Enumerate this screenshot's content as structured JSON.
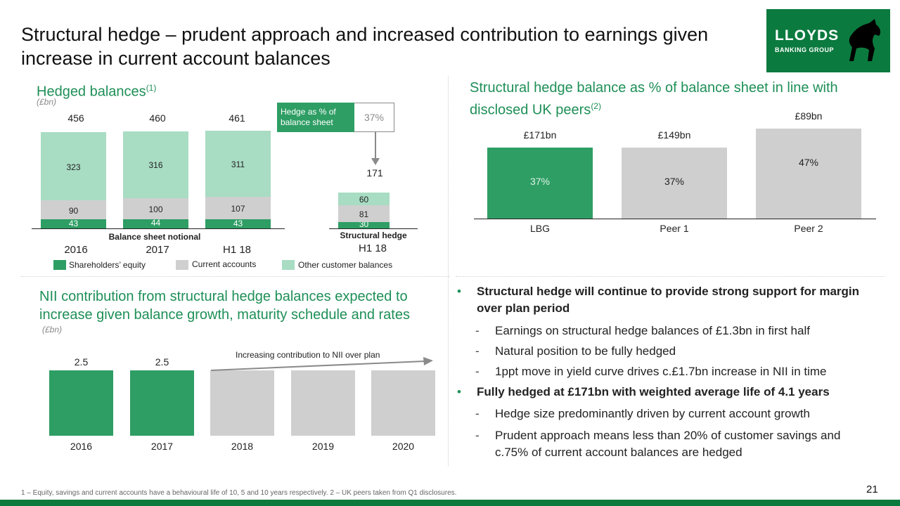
{
  "slide": {
    "title": "Structural hedge – prudent approach and increased contribution to earnings given increase in current account balances",
    "logo_line1": "LLOYDS",
    "logo_line2": "BANKING GROUP",
    "page_number": "21",
    "footnote": "1 – Equity, savings and current accounts have a behavioural life of 10, 5 and 10 years respectively.  2 – UK peers taken from Q1 disclosures."
  },
  "colors": {
    "green_dark": "#2e9e64",
    "green_light": "#a8dcc3",
    "grey": "#cfcfcf",
    "brand": "#0b7a3e",
    "accent_text": "#1e8f57"
  },
  "chart_data": [
    {
      "type": "bar",
      "title": "Hedged balances",
      "title_sup": "(1)",
      "unit": "(£bn)",
      "stacked": true,
      "categories": [
        "2016",
        "2017",
        "H1 18",
        "H1 18"
      ],
      "group_labels": [
        "Balance sheet notional",
        "Structural hedge"
      ],
      "totals": [
        "456",
        "460",
        "461",
        "171"
      ],
      "series": [
        {
          "name": "Shareholders’ equity",
          "values": [
            43,
            44,
            43,
            30
          ]
        },
        {
          "name": "Current accounts",
          "values": [
            90,
            100,
            107,
            81
          ]
        },
        {
          "name": "Other customer balances",
          "values": [
            323,
            316,
            311,
            60
          ]
        }
      ],
      "callout_label": "Hedge as % of balance sheet",
      "callout_value": "37%"
    },
    {
      "type": "bar",
      "title": "Structural hedge balance as % of balance sheet in line with disclosed UK peers",
      "title_sup": "(2)",
      "categories": [
        "LBG",
        "Peer 1",
        "Peer 2"
      ],
      "values": [
        37,
        37,
        47
      ],
      "value_labels": [
        "37%",
        "37%",
        "47%"
      ],
      "top_labels": [
        "£171bn",
        "£149bn",
        "£89bn"
      ]
    },
    {
      "type": "bar",
      "title": "NII contribution from structural hedge balances expected to increase given balance growth, maturity schedule and rates",
      "unit": "(£bn)",
      "categories": [
        "2016",
        "2017",
        "2018",
        "2019",
        "2020"
      ],
      "values": [
        2.5,
        2.5,
        null,
        null,
        null
      ],
      "value_labels": [
        "2.5",
        "2.5",
        "",
        "",
        ""
      ],
      "annotation": "Increasing contribution to NII over plan"
    }
  ],
  "bullets": [
    {
      "level": 1,
      "text": "Structural hedge will continue to provide strong support for margin over plan period"
    },
    {
      "level": 2,
      "text": "Earnings on structural hedge balances of £1.3bn in first half"
    },
    {
      "level": 2,
      "text": "Natural position to be fully hedged"
    },
    {
      "level": 2,
      "text": "1ppt move in yield curve drives c.£1.7bn increase in NII in time"
    },
    {
      "level": 1,
      "text": "Fully hedged at £171bn with weighted average life of 4.1 years"
    },
    {
      "level": 2,
      "text": "Hedge size predominantly driven by current account growth"
    },
    {
      "level": 2,
      "text": "Prudent approach means less than 20% of customer savings and c.75% of current account balances are hedged"
    }
  ],
  "bullet_markers": {
    "level1": "•",
    "level2": "-"
  }
}
